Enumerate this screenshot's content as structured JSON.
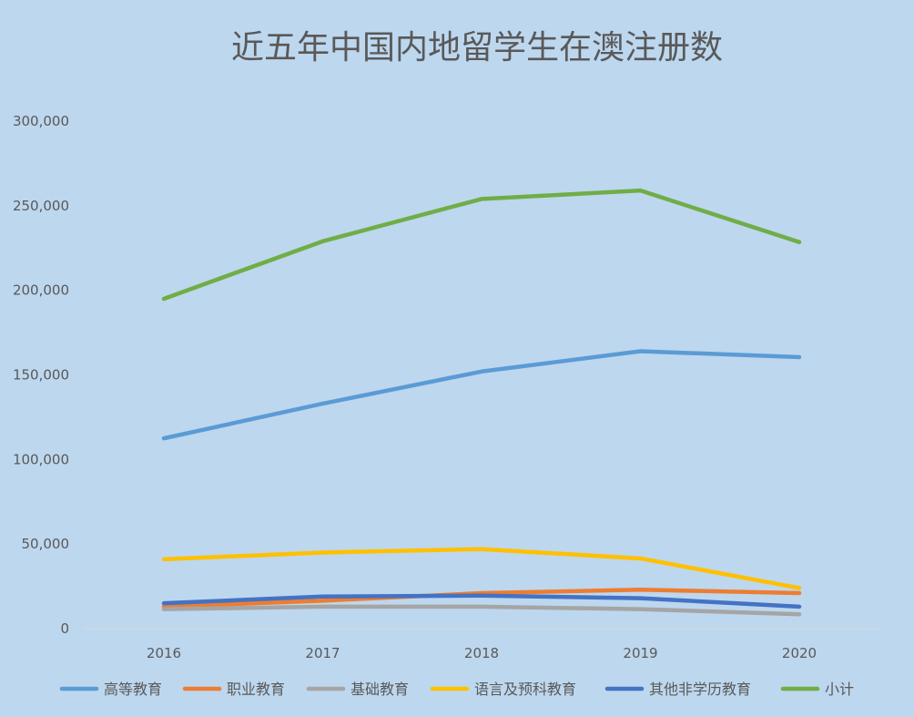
{
  "chart_data": {
    "type": "line",
    "title": "近五年中国内地留学生在澳注册数",
    "categories": [
      "2016",
      "2017",
      "2018",
      "2019",
      "2020"
    ],
    "ylim": [
      0,
      300000
    ],
    "y_ticks": [
      "0",
      "50,000",
      "100,000",
      "150,000",
      "200,000",
      "250,000",
      "300,000"
    ],
    "y_tick_values": [
      0,
      50000,
      100000,
      150000,
      200000,
      250000,
      300000
    ],
    "grid": false,
    "legend_position": "bottom",
    "series": [
      {
        "name": "高等教育",
        "color": "#5b9bd5",
        "values": [
          112500,
          133000,
          152000,
          164000,
          160500
        ]
      },
      {
        "name": "职业教育",
        "color": "#ed7d31",
        "values": [
          13000,
          16500,
          21000,
          23000,
          21000
        ]
      },
      {
        "name": "基础教育",
        "color": "#a5a5a5",
        "values": [
          11500,
          13000,
          13000,
          11500,
          8500
        ]
      },
      {
        "name": "语言及预科教育",
        "color": "#ffc000",
        "values": [
          41000,
          45000,
          47000,
          41500,
          24000
        ]
      },
      {
        "name": "其他非学历教育",
        "color": "#4472c4",
        "values": [
          15000,
          19000,
          19500,
          18000,
          13000
        ]
      },
      {
        "name": "小计",
        "color": "#70ad47",
        "values": [
          195000,
          229000,
          254000,
          259000,
          228500
        ]
      }
    ]
  }
}
